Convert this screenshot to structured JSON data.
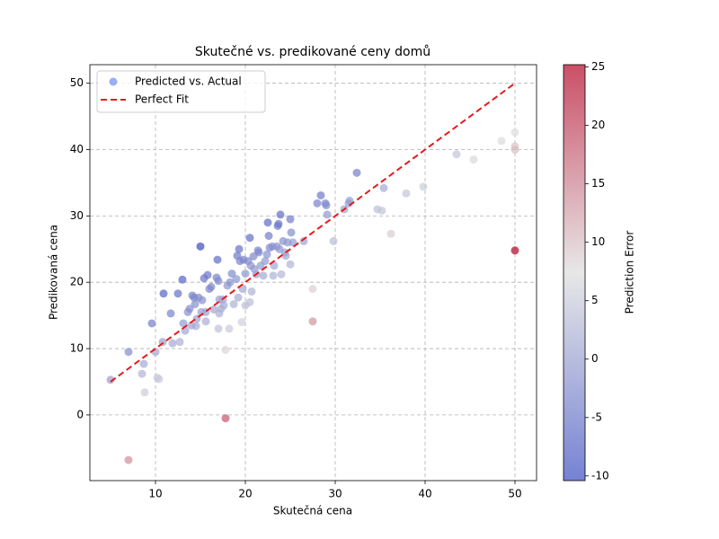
{
  "chart_data": {
    "type": "scatter",
    "title": "Skutečné vs. predikované ceny domů",
    "xlabel": "Skutečná cena",
    "ylabel": "Predikovaná cena",
    "xlim": [
      2.7,
      52.4
    ],
    "ylim": [
      -9.9,
      52.8
    ],
    "xticks": [
      10,
      20,
      30,
      40,
      50
    ],
    "yticks": [
      0,
      10,
      20,
      30,
      40,
      50
    ],
    "grid": true,
    "legend": "upper left",
    "series": [
      {
        "name": "Predicted vs. Actual",
        "type": "scatter",
        "color": "#6f8ff0",
        "x": [
          5,
          7,
          7,
          8.5,
          8.7,
          8.8,
          9.6,
          10,
          10.2,
          10.4,
          10.8,
          10.9,
          11.7,
          11.9,
          12.5,
          12.7,
          13,
          13.1,
          13.3,
          13.6,
          13.8,
          14,
          14.1,
          14.3,
          14.4,
          14.5,
          14.6,
          14.8,
          15,
          15.1,
          15.2,
          15.4,
          15.6,
          15.6,
          15.8,
          16,
          16.2,
          16.5,
          16.8,
          16.9,
          17,
          17,
          17.1,
          17.1,
          17.3,
          17.5,
          17.6,
          17.8,
          17.8,
          18,
          18.2,
          18.3,
          18.5,
          18.7,
          19,
          19.1,
          19.2,
          19.3,
          19.4,
          19.6,
          19.7,
          19.8,
          20,
          20,
          20.3,
          20.5,
          20.5,
          20.6,
          20.7,
          20.9,
          21,
          21.2,
          21.4,
          21.5,
          21.7,
          22,
          22.2,
          22.4,
          22.5,
          22.6,
          22.7,
          23,
          23.1,
          23.2,
          23.5,
          23.6,
          23.7,
          23.8,
          23.9,
          24,
          24.2,
          24.4,
          24.5,
          24.7,
          25,
          25,
          25.1,
          25.3,
          26.5,
          27.5,
          27.5,
          28,
          28.4,
          28.9,
          29,
          29.1,
          29.8,
          31,
          31.5,
          31.6,
          32.4,
          34.7,
          35.2,
          35.4,
          36.2,
          37.9,
          39.8,
          43.5,
          45.4,
          48.5,
          50,
          50,
          50,
          50
        ],
        "y": [
          5.3,
          9.5,
          -6.8,
          6.2,
          7.7,
          3.4,
          13.8,
          9.5,
          5.6,
          5.4,
          11,
          18.3,
          15.3,
          10.8,
          18.3,
          11,
          20.4,
          13.8,
          12.7,
          15.5,
          16,
          13.5,
          18,
          17.7,
          16.7,
          13.4,
          14.5,
          17.7,
          25.4,
          15.5,
          17.3,
          20.6,
          14.1,
          15.5,
          21.1,
          19,
          19.3,
          15.9,
          20.7,
          23.4,
          20.2,
          13,
          15.3,
          17.4,
          16,
          17.4,
          16.5,
          9.8,
          -0.5,
          19.5,
          13,
          20,
          21.3,
          16.7,
          20.5,
          24,
          17.7,
          25,
          23.2,
          14,
          19,
          23.4,
          16.5,
          21.3,
          23.2,
          26.7,
          17,
          22.5,
          18.6,
          23.9,
          22,
          21.2,
          24.8,
          24.5,
          22.5,
          21,
          23.2,
          24.2,
          29,
          27,
          25.2,
          25.4,
          21,
          22.5,
          25.4,
          28.5,
          28.8,
          25,
          30.2,
          21.2,
          26.2,
          24.5,
          24,
          26,
          29.5,
          22.7,
          27.5,
          26,
          26.2,
          19,
          14.1,
          31.9,
          33.1,
          31.9,
          31.6,
          30.2,
          26.2,
          31,
          31.9,
          32.3,
          36.5,
          31,
          30.8,
          34.2,
          27.3,
          33.4,
          34.4,
          39.3,
          38.5,
          41.3,
          42.6,
          40.5,
          40,
          24.8
        ]
      },
      {
        "name": "Perfect Fit",
        "type": "line",
        "color": "#e8191b",
        "x": [
          5,
          50
        ],
        "y": [
          5,
          50
        ]
      }
    ],
    "colorbar": {
      "label": "Prediction Error",
      "cmap": "coolwarm",
      "lim": [
        -10.4,
        25.2
      ],
      "ticks": [
        -10,
        -5,
        0,
        5,
        10,
        15,
        20,
        25
      ]
    }
  }
}
